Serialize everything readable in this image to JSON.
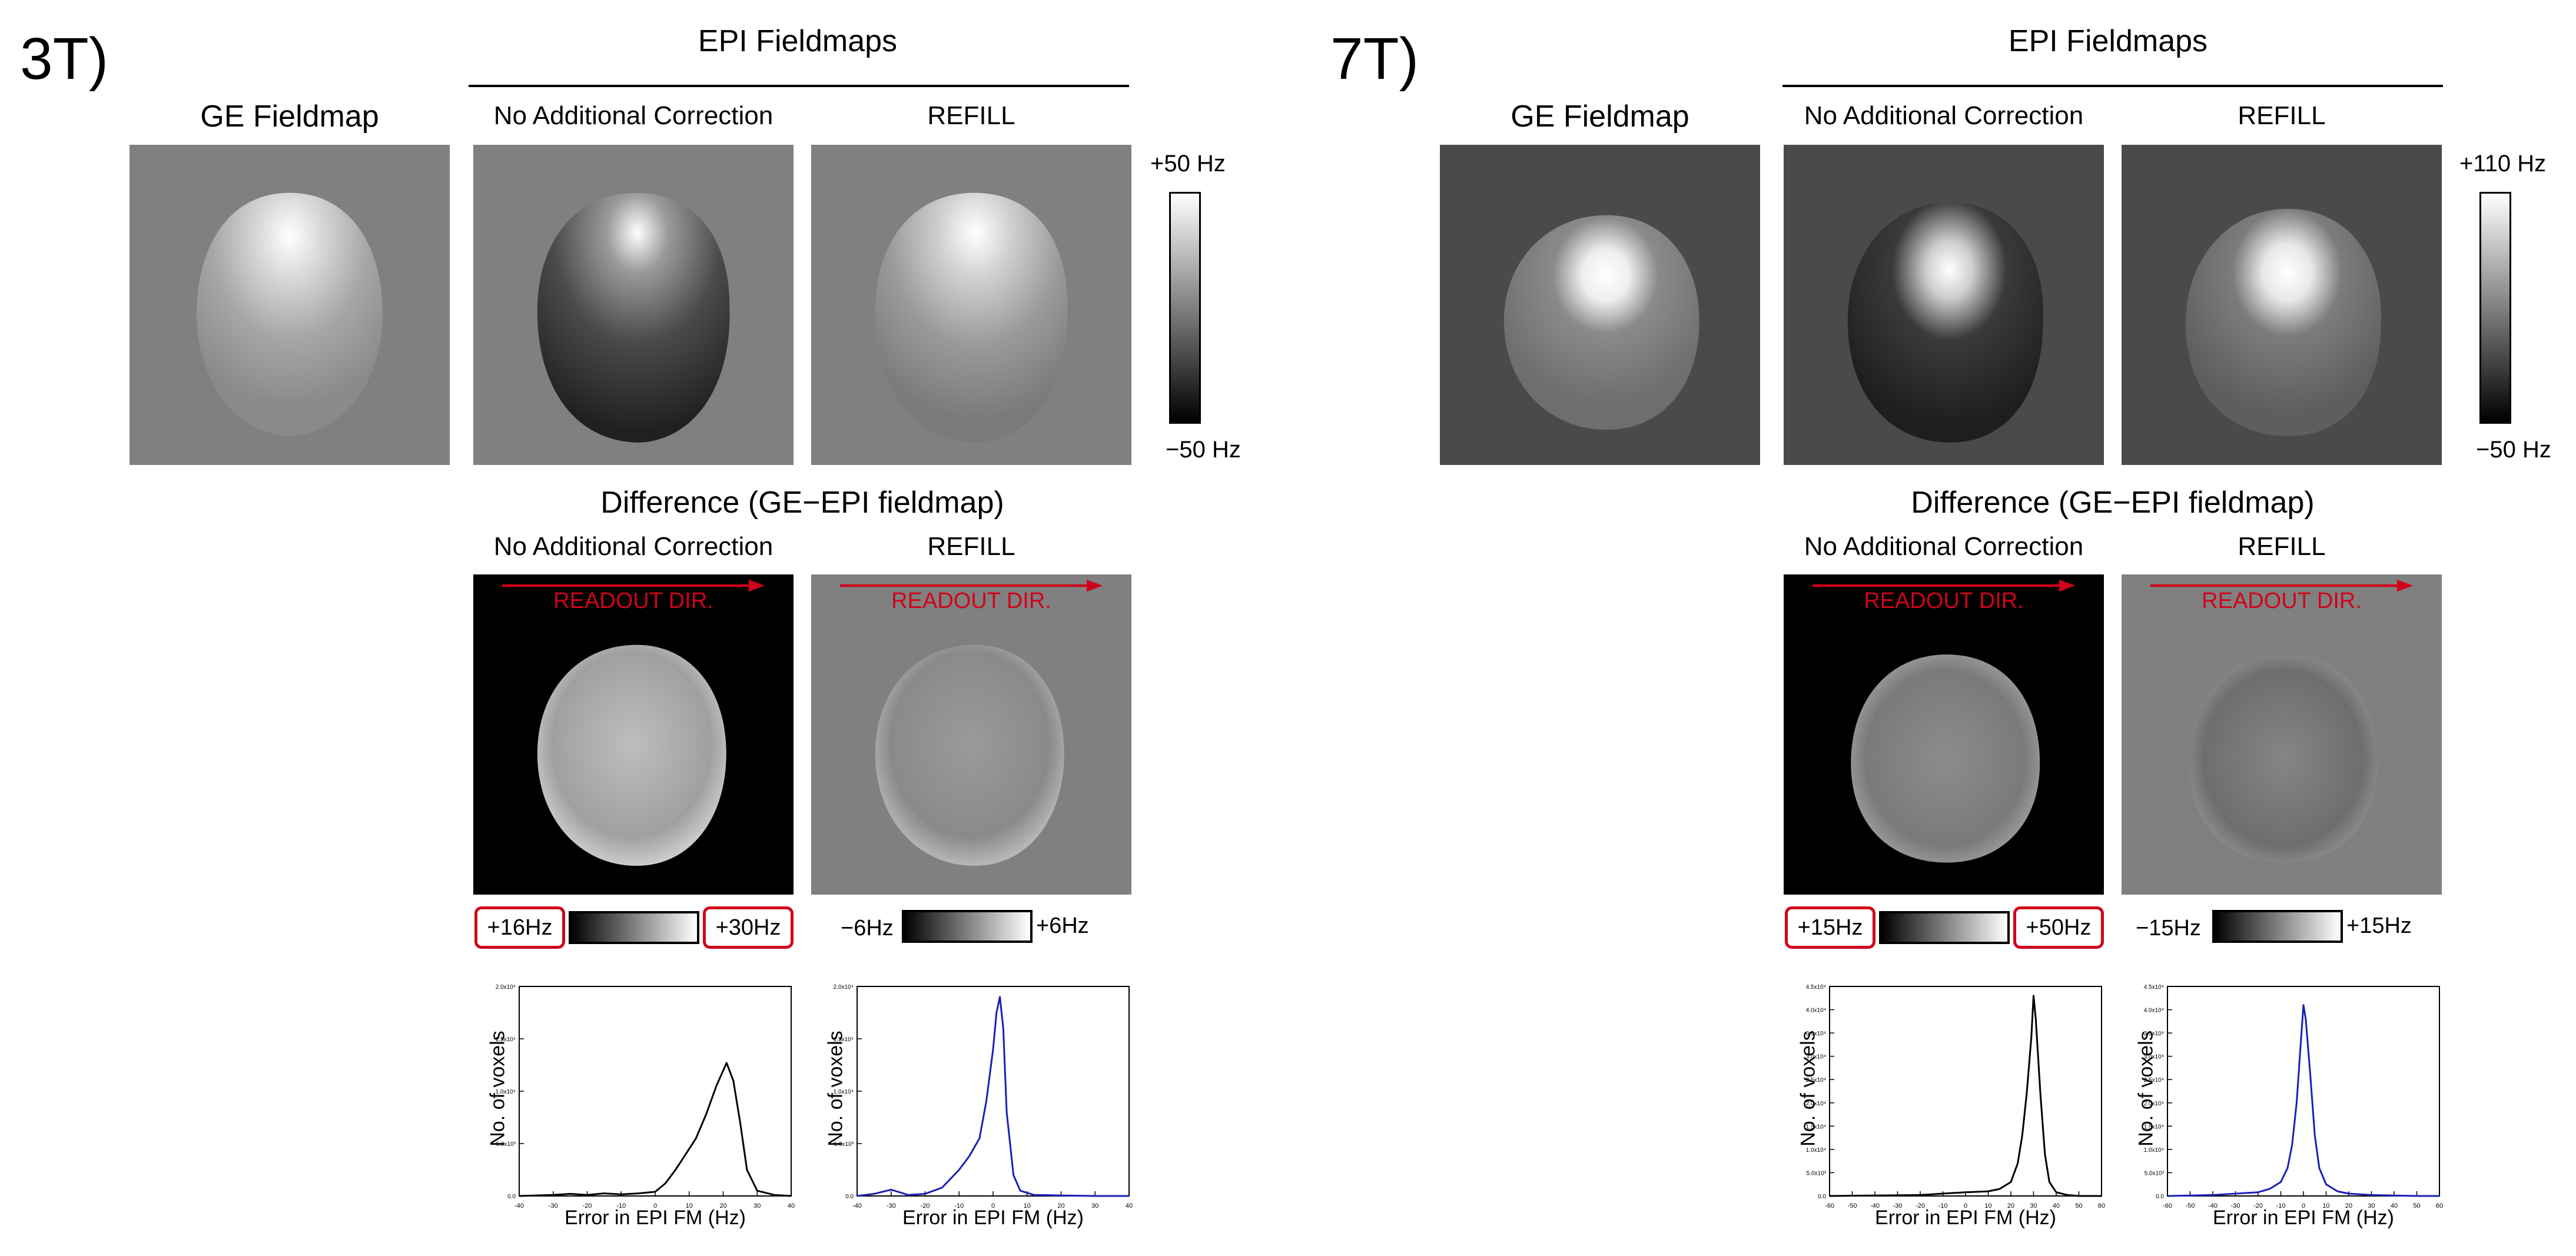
{
  "colors": {
    "readout_red": "#d0021b",
    "series_black": "#000000",
    "series_blue": "#1a1fb5"
  },
  "panels": [
    {
      "label": "3T)",
      "ge_title": "GE Fieldmap",
      "epi_title": "EPI Fieldmaps",
      "col_no_corr": "No Additional Correction",
      "col_refill": "REFILL",
      "fm_cbar_top": "+50 Hz",
      "fm_cbar_bottom": "−50 Hz",
      "diff_title": "Difference (GE−EPI fieldmap)",
      "readout": "READOUT DIR.",
      "cbar1_low": "+16Hz",
      "cbar1_high": "+30Hz",
      "cbar2_low": "−6Hz",
      "cbar2_high": "+6Hz",
      "hist_ylabel": "No. of voxels",
      "hist_xlabel": "Error in EPI FM (Hz)"
    },
    {
      "label": "7T)",
      "ge_title": "GE Fieldmap",
      "epi_title": "EPI Fieldmaps",
      "col_no_corr": "No Additional Correction",
      "col_refill": "REFILL",
      "fm_cbar_top": "+110 Hz",
      "fm_cbar_bottom": "−50 Hz",
      "diff_title": "Difference (GE−EPI fieldmap)",
      "readout": "READOUT DIR.",
      "cbar1_low": "+15Hz",
      "cbar1_high": "+50Hz",
      "cbar2_low": "−15Hz",
      "cbar2_high": "+15Hz",
      "hist_ylabel": "No. of voxels",
      "hist_xlabel": "Error in EPI FM (Hz)"
    }
  ],
  "chart_data": [
    {
      "type": "line",
      "name": "3T no additional correction",
      "xlabel": "Error in EPI FM (Hz)",
      "ylabel": "No. of voxels",
      "xlim": [
        -40,
        40
      ],
      "ylim": [
        0,
        20000
      ],
      "xticks": [
        "-40",
        "-30",
        "-20",
        "-10",
        "0",
        "10",
        "20",
        "30",
        "40"
      ],
      "yticks": [
        "0.0",
        "5.0x10³",
        "1.0x10⁴",
        "1.5x10⁴",
        "2.0x10⁴"
      ],
      "color": "#000000",
      "x": [
        -40,
        -30,
        -25,
        -20,
        -15,
        -10,
        -5,
        0,
        3,
        6,
        9,
        12,
        15,
        18,
        21,
        23,
        25,
        27,
        30,
        35,
        40
      ],
      "y": [
        0,
        100,
        200,
        100,
        250,
        150,
        250,
        400,
        1200,
        2500,
        4000,
        5500,
        7800,
        10500,
        12700,
        11000,
        7000,
        2500,
        500,
        100,
        0
      ]
    },
    {
      "type": "line",
      "name": "3T REFILL",
      "xlabel": "Error in EPI FM (Hz)",
      "ylabel": "No. of voxels",
      "xlim": [
        -40,
        40
      ],
      "ylim": [
        0,
        20000
      ],
      "xticks": [
        "-40",
        "-30",
        "-20",
        "-10",
        "0",
        "10",
        "20",
        "30",
        "40"
      ],
      "yticks": [
        "0.0",
        "5.0x10³",
        "1.0x10⁴",
        "1.5x10⁴",
        "2.0x10⁴"
      ],
      "color": "#1a1fb5",
      "x": [
        -40,
        -35,
        -30,
        -25,
        -20,
        -15,
        -10,
        -7,
        -4,
        -2,
        0,
        1,
        2,
        3,
        4,
        6,
        8,
        12,
        20,
        30,
        40
      ],
      "y": [
        0,
        200,
        600,
        100,
        200,
        800,
        2500,
        3800,
        5500,
        9000,
        14000,
        17500,
        19000,
        16000,
        8000,
        2000,
        500,
        100,
        50,
        0,
        0
      ]
    },
    {
      "type": "line",
      "name": "7T no additional correction",
      "xlabel": "Error in EPI FM (Hz)",
      "ylabel": "No. of voxels",
      "xlim": [
        -60,
        60
      ],
      "ylim": [
        0,
        45000
      ],
      "xticks": [
        "-60",
        "-50",
        "-40",
        "-30",
        "-20",
        "-10",
        "0",
        "10",
        "20",
        "30",
        "40",
        "50",
        "60"
      ],
      "yticks": [
        "0.0",
        "5.0x10³",
        "1.0x10⁴",
        "1.5x10⁴",
        "2.0x10⁴",
        "2.5x10⁴",
        "3.0x10⁴",
        "3.5x10⁴",
        "4.0x10⁴",
        "4.5x10⁴"
      ],
      "color": "#000000",
      "x": [
        -60,
        -40,
        -20,
        -10,
        0,
        10,
        15,
        20,
        23,
        25,
        27,
        29,
        30,
        31,
        33,
        35,
        37,
        40,
        45,
        50,
        60
      ],
      "y": [
        0,
        100,
        200,
        500,
        800,
        1000,
        1500,
        3000,
        7000,
        13000,
        22000,
        34000,
        43000,
        38000,
        22000,
        9000,
        3000,
        800,
        200,
        0,
        0
      ]
    },
    {
      "type": "line",
      "name": "7T REFILL",
      "xlabel": "Error in EPI FM (Hz)",
      "ylabel": "No. of voxels",
      "xlim": [
        -60,
        60
      ],
      "ylim": [
        0,
        45000
      ],
      "xticks": [
        "-60",
        "-50",
        "-40",
        "-30",
        "-20",
        "-10",
        "0",
        "10",
        "20",
        "30",
        "40",
        "50",
        "60"
      ],
      "yticks": [
        "0.0",
        "5.0x10³",
        "1.0x10⁴",
        "1.5x10⁴",
        "2.0x10⁴",
        "2.5x10⁴",
        "3.0x10⁴",
        "3.5x10⁴",
        "4.0x10⁴",
        "4.5x10⁴"
      ],
      "color": "#1a1fb5",
      "x": [
        -60,
        -40,
        -20,
        -15,
        -10,
        -7,
        -5,
        -3,
        -1,
        0,
        1,
        3,
        5,
        7,
        10,
        15,
        20,
        30,
        40,
        50,
        60
      ],
      "y": [
        0,
        200,
        800,
        1500,
        3000,
        6000,
        11000,
        20000,
        34000,
        41000,
        38000,
        26000,
        13000,
        6000,
        2500,
        1000,
        500,
        200,
        100,
        0,
        0
      ]
    }
  ]
}
